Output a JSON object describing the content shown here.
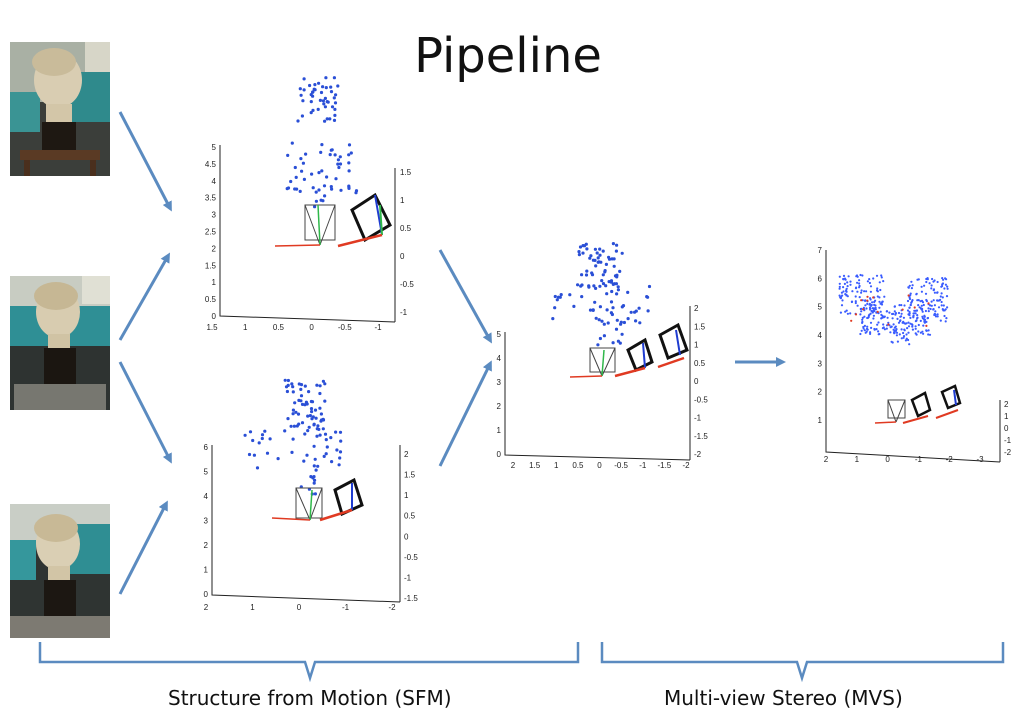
{
  "title": "Pipeline",
  "captions": {
    "sfm": "Structure from Motion (SFM)",
    "mvs": "Multi-view Stereo (MVS)"
  },
  "photos": [
    {
      "name": "input-photo-1"
    },
    {
      "name": "input-photo-2"
    },
    {
      "name": "input-photo-3"
    }
  ],
  "colors": {
    "arrow": "#5b8bc0",
    "points": "#2a4fd6",
    "dense_points": "#3a5cff",
    "bracket": "#5b8bc0",
    "camera_red": "#e03a22",
    "camera_green": "#2fb84a",
    "camera_blue": "#1f3cd0"
  },
  "chart_data": [
    {
      "type": "scatter",
      "name": "sfm-reconstruction-top",
      "y_ticks": [
        "0",
        "0.5",
        "1",
        "1.5",
        "2",
        "2.5",
        "3",
        "3.5",
        "4",
        "4.5",
        "5"
      ],
      "x_ticks": [
        "1.5",
        "1",
        "0.5",
        "0",
        "-0.5",
        "-1"
      ],
      "z_ticks": [
        "1.5",
        "1",
        "0.5",
        "0",
        "-0.5",
        "-1"
      ]
    },
    {
      "type": "scatter",
      "name": "sfm-reconstruction-bottom",
      "y_ticks": [
        "0",
        "1",
        "2",
        "3",
        "4",
        "5",
        "6"
      ],
      "x_ticks": [
        "2",
        "1",
        "0",
        "-1",
        "-2"
      ],
      "z_ticks": [
        "2",
        "1.5",
        "1",
        "0.5",
        "0",
        "-0.5",
        "-1",
        "-1.5"
      ]
    },
    {
      "type": "scatter",
      "name": "sfm-merged-reconstruction",
      "y_ticks": [
        "0",
        "1",
        "2",
        "3",
        "4",
        "5"
      ],
      "x_ticks": [
        "2",
        "1.5",
        "1",
        "0.5",
        "0",
        "-0.5",
        "-1",
        "-1.5",
        "-2"
      ],
      "z_ticks": [
        "2",
        "1.5",
        "1",
        "0.5",
        "0",
        "-0.5",
        "-1",
        "-1.5",
        "-2"
      ]
    },
    {
      "type": "scatter",
      "name": "mvs-dense-reconstruction",
      "y_ticks": [
        "1",
        "2",
        "3",
        "4",
        "5",
        "6",
        "7"
      ],
      "x_ticks": [
        "2",
        "1",
        "0",
        "-1",
        "-2",
        "-3"
      ],
      "z_ticks": [
        "2",
        "1",
        "0",
        "-1",
        "-2"
      ]
    }
  ]
}
